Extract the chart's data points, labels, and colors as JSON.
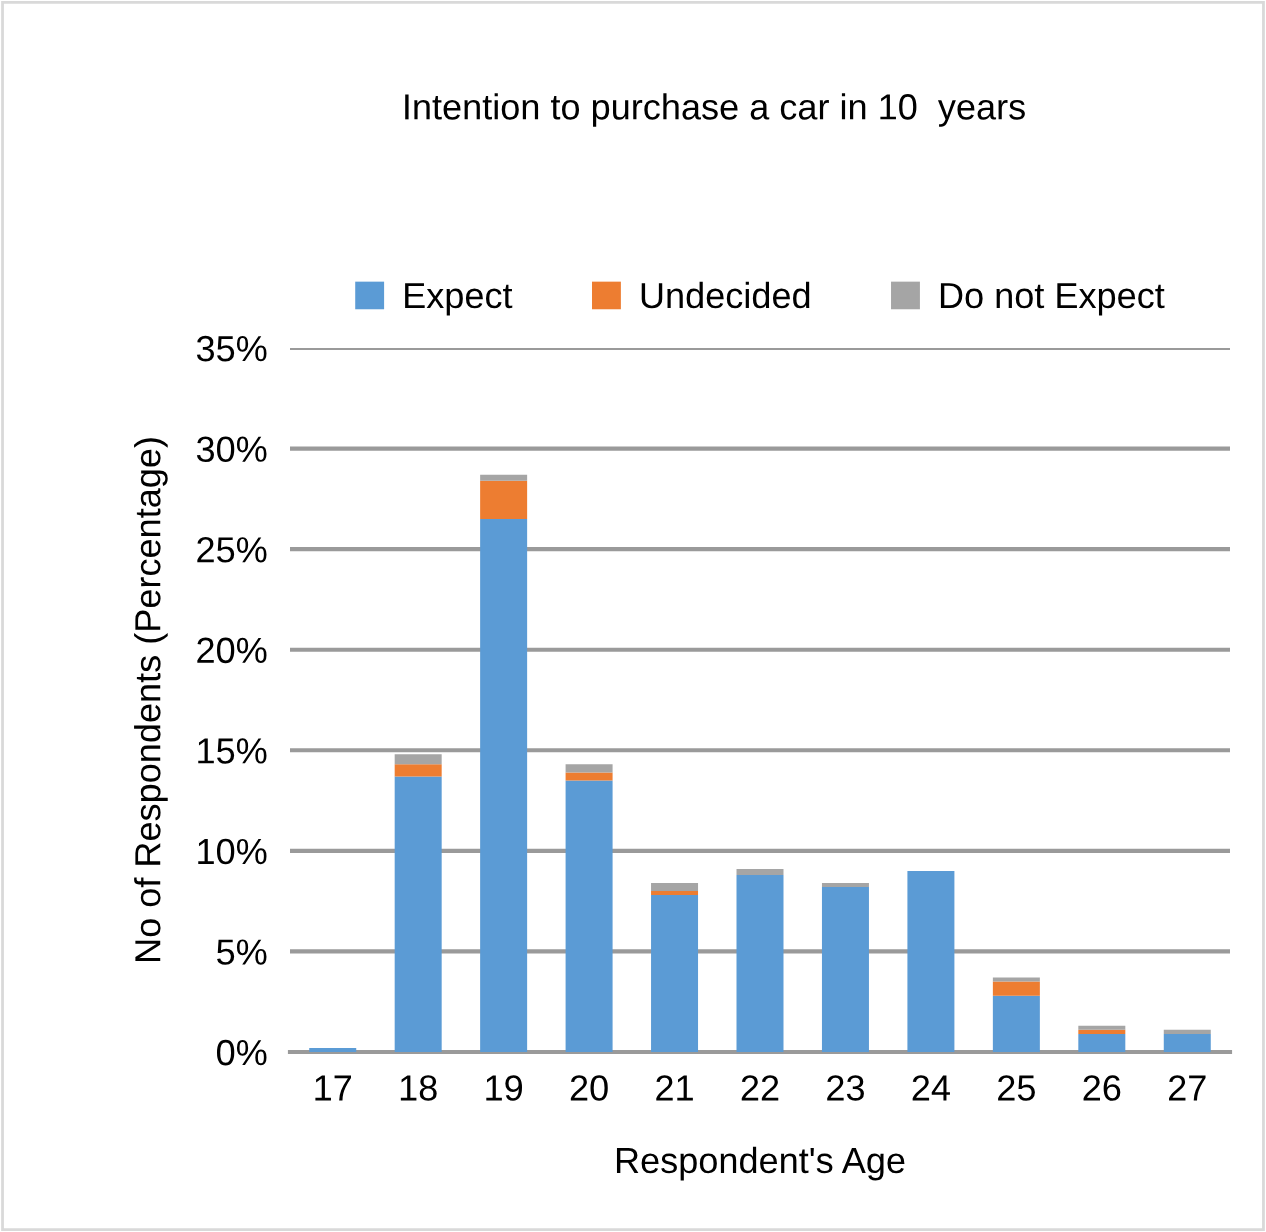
{
  "chart_data": {
    "type": "bar",
    "stacked": true,
    "title": "Intention to purchase a car in 10  years",
    "xlabel": "Respondent's Age",
    "ylabel": "No of Respondents (Percentage)",
    "categories": [
      "17",
      "18",
      "19",
      "20",
      "21",
      "22",
      "23",
      "24",
      "25",
      "26",
      "27"
    ],
    "series": [
      {
        "name": "Expect",
        "color": "#5b9bd5",
        "values": [
          0.2,
          13.7,
          26.5,
          13.5,
          7.8,
          8.8,
          8.2,
          9.0,
          2.8,
          0.9,
          0.9
        ]
      },
      {
        "name": "Undecided",
        "color": "#ed7d31",
        "values": [
          0,
          0.6,
          1.9,
          0.4,
          0.2,
          0,
          0,
          0,
          0.7,
          0.2,
          0
        ]
      },
      {
        "name": "Do not Expect",
        "color": "#a5a5a5",
        "values": [
          0,
          0.5,
          0.3,
          0.4,
          0.4,
          0.3,
          0.2,
          0,
          0.2,
          0.2,
          0.2
        ]
      }
    ],
    "ylim": [
      0,
      35
    ],
    "yticks": [
      {
        "value": 0,
        "label": "0%"
      },
      {
        "value": 5,
        "label": "5%"
      },
      {
        "value": 10,
        "label": "10%"
      },
      {
        "value": 15,
        "label": "15%"
      },
      {
        "value": 20,
        "label": "20%"
      },
      {
        "value": 25,
        "label": "25%"
      },
      {
        "value": 30,
        "label": "30%"
      },
      {
        "value": 35,
        "label": "35%"
      }
    ],
    "grid": "y",
    "legend": "top"
  }
}
